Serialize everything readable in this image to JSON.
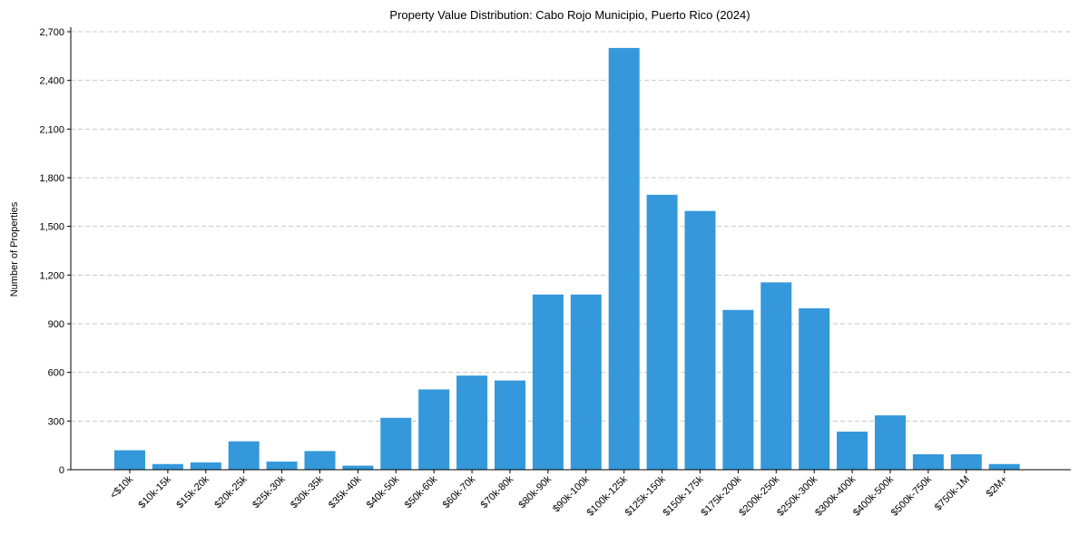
{
  "chart_data": {
    "type": "bar",
    "title": "Property Value Distribution: Cabo Rojo Municipio, Puerto Rico (2024)",
    "xlabel": "",
    "ylabel": "Number of Properties",
    "ylim": [
      0,
      2700
    ],
    "yticks": [
      0,
      300,
      600,
      900,
      1200,
      1500,
      1800,
      2100,
      2400,
      2700
    ],
    "ytick_labels": [
      "0",
      "300",
      "600",
      "900",
      "1,200",
      "1,500",
      "1,800",
      "2,100",
      "2,400",
      "2,700"
    ],
    "grid": "y-dashed",
    "categories": [
      "<$10k",
      "$10k-15k",
      "$15k-20k",
      "$20k-25k",
      "$25k-30k",
      "$30k-35k",
      "$35k-40k",
      "$40k-50k",
      "$50k-60k",
      "$60k-70k",
      "$70k-80k",
      "$80k-90k",
      "$90k-100k",
      "$100k-125k",
      "$125k-150k",
      "$150k-175k",
      "$175k-200k",
      "$200k-250k",
      "$250k-300k",
      "$300k-400k",
      "$400k-500k",
      "$500k-750k",
      "$750k-1M",
      "$2M+"
    ],
    "values": [
      120,
      35,
      45,
      175,
      50,
      115,
      25,
      320,
      495,
      580,
      550,
      1080,
      1080,
      2600,
      1695,
      1595,
      985,
      1155,
      995,
      235,
      335,
      95,
      95,
      35
    ],
    "color": "#3498db"
  }
}
